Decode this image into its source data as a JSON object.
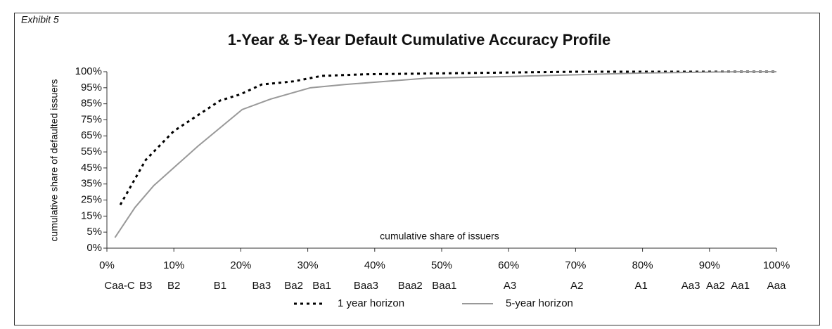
{
  "exhibit": "Exhibit 5",
  "chart_data": {
    "type": "line",
    "title": "1-Year & 5-Year Default Cumulative Accuracy Profile",
    "xlabel": "cumulative share of issuers",
    "ylabel": "cumulative share of defaulted issuers",
    "xlim": [
      0,
      100
    ],
    "xticks": [
      {
        "value": 0,
        "label": "0%"
      },
      {
        "value": 10,
        "label": "10%"
      },
      {
        "value": 20,
        "label": "20%"
      },
      {
        "value": 30,
        "label": "30%"
      },
      {
        "value": 40,
        "label": "40%"
      },
      {
        "value": 50,
        "label": "50%"
      },
      {
        "value": 60,
        "label": "60%"
      },
      {
        "value": 70,
        "label": "70%"
      },
      {
        "value": 80,
        "label": "80%"
      },
      {
        "value": 90,
        "label": "90%"
      },
      {
        "value": 100,
        "label": "100%"
      }
    ],
    "ylim": [
      0,
      100
    ],
    "yticks": [
      {
        "value": 0,
        "label": "0%"
      },
      {
        "value": 5,
        "label": "5%"
      },
      {
        "value": 15,
        "label": "15%"
      },
      {
        "value": 25,
        "label": "25%"
      },
      {
        "value": 35,
        "label": "35%"
      },
      {
        "value": 45,
        "label": "45%"
      },
      {
        "value": 55,
        "label": "55%"
      },
      {
        "value": 65,
        "label": "65%"
      },
      {
        "value": 75,
        "label": "75%"
      },
      {
        "value": 85,
        "label": "85%"
      },
      {
        "value": 95,
        "label": "95%"
      },
      {
        "value": 100,
        "label": "100%"
      }
    ],
    "ratings": [
      "Caa-C",
      "B3",
      "B2",
      "B1",
      "Ba3",
      "Ba2",
      "Ba1",
      "Baa3",
      "Baa2",
      "Baa1",
      "A3",
      "A2",
      "A1",
      "Aa3",
      "Aa2",
      "Aa1",
      "Aaa"
    ],
    "rating_positions": [
      1.9,
      5.8,
      10,
      16.9,
      23.1,
      27.9,
      32.1,
      38.7,
      45.3,
      50.4,
      60.2,
      70.2,
      79.8,
      87.2,
      90.9,
      94.6,
      100
    ],
    "series": [
      {
        "name": "1 year horizon",
        "color": "#000000",
        "style": "dotted",
        "x": [
          2,
          5.8,
          10,
          16.9,
          20,
          23.1,
          27.9,
          32.1,
          38.7,
          50.4,
          70.2,
          100
        ],
        "values": [
          22,
          50,
          68,
          87,
          91,
          96,
          97,
          98.7,
          99.2,
          99.5,
          100,
          100
        ]
      },
      {
        "name": "5-year horizon",
        "color": "#999999",
        "style": "solid",
        "x": [
          1.2,
          4.2,
          7,
          13.6,
          20.2,
          24.5,
          30.4,
          35.5,
          47.9,
          60,
          80,
          94.6,
          100
        ],
        "values": [
          3.3,
          20.4,
          34,
          58.6,
          81.4,
          88,
          95,
          96,
          98,
          98.5,
          99.6,
          100,
          100
        ]
      }
    ]
  }
}
